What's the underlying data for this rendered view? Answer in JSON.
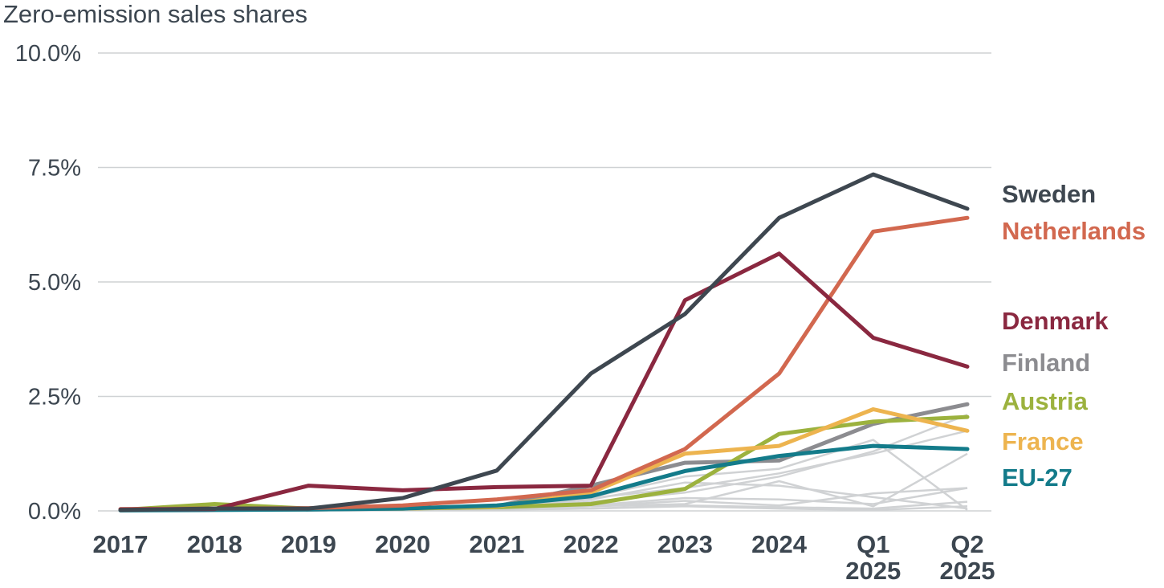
{
  "chart_data": {
    "type": "line",
    "title": "Zero-emission sales shares",
    "xlabel": "",
    "ylabel": "",
    "ylim": [
      0,
      10
    ],
    "y_ticks": [
      "0.0%",
      "2.5%",
      "5.0%",
      "7.5%",
      "10.0%"
    ],
    "y_tick_values": [
      0,
      2.5,
      5,
      7.5,
      10
    ],
    "categories": [
      "2017",
      "2018",
      "2019",
      "2020",
      "2021",
      "2022",
      "2023",
      "2024",
      "Q1 2025",
      "Q2 2025"
    ],
    "grid": true,
    "legend": "direct labels at right",
    "series": [
      {
        "name": "Sweden",
        "color": "#3e4750",
        "values": [
          0.02,
          0.05,
          0.05,
          0.28,
          0.88,
          3.0,
          4.3,
          6.4,
          7.35,
          6.6
        ]
      },
      {
        "name": "Netherlands",
        "color": "#d2684f",
        "values": [
          0.04,
          0.05,
          0.06,
          0.12,
          0.25,
          0.45,
          1.35,
          3.0,
          6.1,
          6.4
        ]
      },
      {
        "name": "Denmark",
        "color": "#8a2840",
        "values": [
          0.03,
          0.04,
          0.55,
          0.45,
          0.52,
          0.55,
          4.6,
          5.62,
          3.78,
          3.15
        ]
      },
      {
        "name": "Finland",
        "color": "#8c8c90",
        "values": [
          0.02,
          0.03,
          0.03,
          0.05,
          0.1,
          0.55,
          1.05,
          1.1,
          1.9,
          2.33
        ]
      },
      {
        "name": "Austria",
        "color": "#9cb23e",
        "values": [
          0.02,
          0.15,
          0.05,
          0.05,
          0.08,
          0.15,
          0.48,
          1.68,
          1.95,
          2.05
        ]
      },
      {
        "name": "France",
        "color": "#edb44f",
        "values": [
          0.02,
          0.05,
          0.05,
          0.05,
          0.1,
          0.4,
          1.25,
          1.42,
          2.22,
          1.75
        ]
      },
      {
        "name": "EU-27",
        "color": "#137b8a",
        "values": [
          0.01,
          0.02,
          0.03,
          0.05,
          0.12,
          0.32,
          0.87,
          1.2,
          1.42,
          1.35
        ]
      }
    ],
    "background_series": [
      {
        "values": [
          0.0,
          0.01,
          0.02,
          0.03,
          0.05,
          0.28,
          0.5,
          0.82,
          1.25,
          1.75
        ]
      },
      {
        "values": [
          0.0,
          0.01,
          0.02,
          0.03,
          0.05,
          0.3,
          0.75,
          0.92,
          1.55,
          0.02
        ]
      },
      {
        "values": [
          0.0,
          0.01,
          0.01,
          0.02,
          0.03,
          0.1,
          0.15,
          0.65,
          0.1,
          1.25
        ]
      },
      {
        "values": [
          0.0,
          0.01,
          0.01,
          0.02,
          0.03,
          0.12,
          0.28,
          0.25,
          0.15,
          0.5
        ]
      },
      {
        "values": [
          0.0,
          0.01,
          0.01,
          0.02,
          0.03,
          0.1,
          0.22,
          0.12,
          0.38,
          0.5
        ]
      },
      {
        "values": [
          0.0,
          0.01,
          0.01,
          0.02,
          0.03,
          0.05,
          0.12,
          0.08,
          0.05,
          0.2
        ]
      },
      {
        "values": [
          0.0,
          0.01,
          0.01,
          0.02,
          0.03,
          0.05,
          0.1,
          0.05,
          0.02,
          0.1
        ]
      },
      {
        "values": [
          0.0,
          0.01,
          0.02,
          0.03,
          0.05,
          0.25,
          0.62,
          0.55,
          0.3,
          0.05
        ]
      },
      {
        "values": [
          0.0,
          0.01,
          0.02,
          0.03,
          0.05,
          0.2,
          0.4,
          0.75,
          1.3,
          2.1
        ]
      }
    ]
  }
}
